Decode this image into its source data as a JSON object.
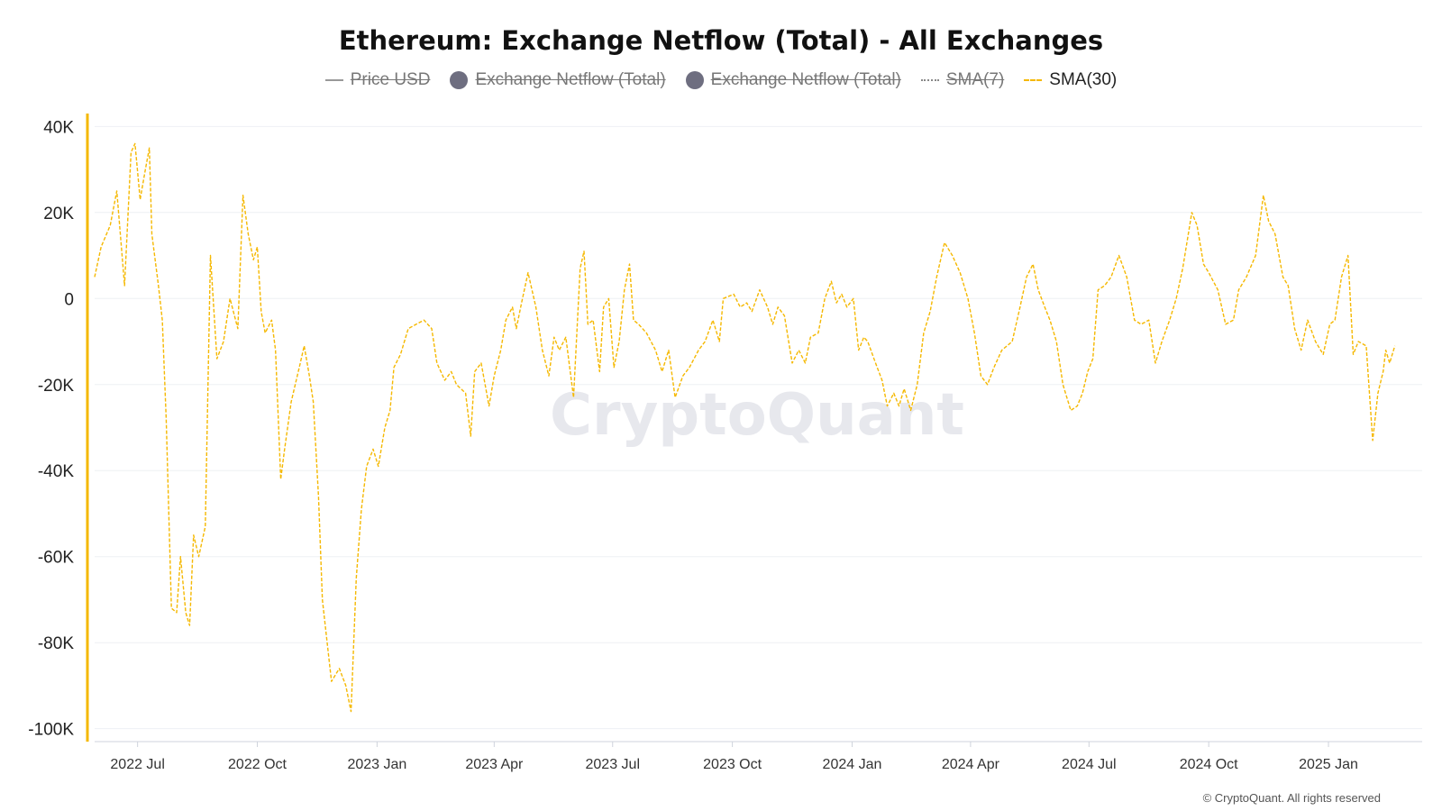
{
  "chart_data": {
    "type": "line",
    "title": "Ethereum: Exchange Netflow (Total) - All Exchanges",
    "legend": [
      {
        "label": "Price USD",
        "swatch": "line",
        "active": false,
        "color": "#999999"
      },
      {
        "label": "Exchange Netflow (Total)",
        "swatch": "dot",
        "active": false,
        "color": "#6e6e80"
      },
      {
        "label": "Exchange Netflow (Total)",
        "swatch": "dot",
        "active": false,
        "color": "#6e6e80"
      },
      {
        "label": "SMA(7)",
        "swatch": "dotted",
        "active": false,
        "color": "#888888"
      },
      {
        "label": "SMA(30)",
        "swatch": "dashed",
        "active": true,
        "color": "#f5b800"
      }
    ],
    "legend_position": "top-center",
    "y_ticks": [
      {
        "value": 40000,
        "label": "40K"
      },
      {
        "value": 20000,
        "label": "20K"
      },
      {
        "value": 0,
        "label": "0"
      },
      {
        "value": -20000,
        "label": "-20K"
      },
      {
        "value": -40000,
        "label": "-40K"
      },
      {
        "value": -60000,
        "label": "-60K"
      },
      {
        "value": -80000,
        "label": "-80K"
      },
      {
        "value": -100000,
        "label": "-100K"
      }
    ],
    "x_ticks": [
      {
        "date": "2022-07-01",
        "label": "2022 Jul"
      },
      {
        "date": "2022-10-01",
        "label": "2022 Oct"
      },
      {
        "date": "2023-01-01",
        "label": "2023 Jan"
      },
      {
        "date": "2023-04-01",
        "label": "2023 Apr"
      },
      {
        "date": "2023-07-01",
        "label": "2023 Jul"
      },
      {
        "date": "2023-10-01",
        "label": "2023 Oct"
      },
      {
        "date": "2024-01-01",
        "label": "2024 Jan"
      },
      {
        "date": "2024-04-01",
        "label": "2024 Apr"
      },
      {
        "date": "2024-07-01",
        "label": "2024 Jul"
      },
      {
        "date": "2024-10-01",
        "label": "2024 Oct"
      },
      {
        "date": "2025-01-01",
        "label": "2025 Jan"
      }
    ],
    "xlim": [
      "2022-05-29",
      "2025-03-14"
    ],
    "ylim": [
      -103000,
      43000
    ],
    "grid": true,
    "series": [
      {
        "name": "SMA(30)",
        "color": "#f5b800",
        "style": "dashed",
        "points": [
          [
            "2022-05-29",
            5000
          ],
          [
            "2022-06-03",
            12000
          ],
          [
            "2022-06-10",
            17000
          ],
          [
            "2022-06-15",
            25000
          ],
          [
            "2022-06-21",
            3000
          ],
          [
            "2022-06-26",
            34000
          ],
          [
            "2022-06-29",
            36000
          ],
          [
            "2022-07-03",
            23000
          ],
          [
            "2022-07-07",
            30000
          ],
          [
            "2022-07-10",
            35000
          ],
          [
            "2022-07-12",
            15000
          ],
          [
            "2022-07-17",
            3000
          ],
          [
            "2022-07-20",
            -5000
          ],
          [
            "2022-07-23",
            -28000
          ],
          [
            "2022-07-27",
            -72000
          ],
          [
            "2022-07-31",
            -73000
          ],
          [
            "2022-08-03",
            -60000
          ],
          [
            "2022-08-07",
            -73000
          ],
          [
            "2022-08-10",
            -76000
          ],
          [
            "2022-08-13",
            -55000
          ],
          [
            "2022-08-17",
            -60000
          ],
          [
            "2022-08-22",
            -53000
          ],
          [
            "2022-08-26",
            10000
          ],
          [
            "2022-08-31",
            -14000
          ],
          [
            "2022-09-05",
            -10000
          ],
          [
            "2022-09-10",
            0
          ],
          [
            "2022-09-16",
            -7000
          ],
          [
            "2022-09-20",
            24000
          ],
          [
            "2022-09-24",
            15000
          ],
          [
            "2022-09-28",
            9000
          ],
          [
            "2022-10-01",
            12000
          ],
          [
            "2022-10-04",
            -3000
          ],
          [
            "2022-10-07",
            -8000
          ],
          [
            "2022-10-12",
            -5000
          ],
          [
            "2022-10-15",
            -12000
          ],
          [
            "2022-10-19",
            -42000
          ],
          [
            "2022-10-22",
            -35000
          ],
          [
            "2022-10-27",
            -24000
          ],
          [
            "2022-11-03",
            -15000
          ],
          [
            "2022-11-06",
            -11000
          ],
          [
            "2022-11-10",
            -18000
          ],
          [
            "2022-11-13",
            -24000
          ],
          [
            "2022-11-17",
            -46000
          ],
          [
            "2022-11-20",
            -70000
          ],
          [
            "2022-11-27",
            -89000
          ],
          [
            "2022-12-03",
            -86000
          ],
          [
            "2022-12-08",
            -90000
          ],
          [
            "2022-12-12",
            -96000
          ],
          [
            "2022-12-16",
            -65000
          ],
          [
            "2022-12-20",
            -49000
          ],
          [
            "2022-12-24",
            -39000
          ],
          [
            "2022-12-29",
            -35000
          ],
          [
            "2023-01-02",
            -39000
          ],
          [
            "2023-01-07",
            -30000
          ],
          [
            "2023-01-11",
            -26000
          ],
          [
            "2023-01-14",
            -16000
          ],
          [
            "2023-01-19",
            -13000
          ],
          [
            "2023-01-25",
            -7000
          ],
          [
            "2023-01-31",
            -6000
          ],
          [
            "2023-02-06",
            -5000
          ],
          [
            "2023-02-12",
            -7000
          ],
          [
            "2023-02-16",
            -15000
          ],
          [
            "2023-02-22",
            -19000
          ],
          [
            "2023-02-27",
            -17000
          ],
          [
            "2023-03-03",
            -20000
          ],
          [
            "2023-03-10",
            -22000
          ],
          [
            "2023-03-14",
            -32000
          ],
          [
            "2023-03-17",
            -17000
          ],
          [
            "2023-03-22",
            -15000
          ],
          [
            "2023-03-28",
            -25000
          ],
          [
            "2023-04-01",
            -18000
          ],
          [
            "2023-04-06",
            -12000
          ],
          [
            "2023-04-10",
            -5000
          ],
          [
            "2023-04-15",
            -2000
          ],
          [
            "2023-04-18",
            -7000
          ],
          [
            "2023-04-22",
            -1000
          ],
          [
            "2023-04-27",
            6000
          ],
          [
            "2023-05-03",
            -2000
          ],
          [
            "2023-05-08",
            -12000
          ],
          [
            "2023-05-13",
            -18000
          ],
          [
            "2023-05-17",
            -9000
          ],
          [
            "2023-05-21",
            -12000
          ],
          [
            "2023-05-26",
            -9000
          ],
          [
            "2023-06-01",
            -23000
          ],
          [
            "2023-06-06",
            7000
          ],
          [
            "2023-06-09",
            11000
          ],
          [
            "2023-06-12",
            -6000
          ],
          [
            "2023-06-16",
            -5000
          ],
          [
            "2023-06-21",
            -17000
          ],
          [
            "2023-06-24",
            -2000
          ],
          [
            "2023-06-28",
            0
          ],
          [
            "2023-07-02",
            -16000
          ],
          [
            "2023-07-06",
            -10000
          ],
          [
            "2023-07-10",
            2000
          ],
          [
            "2023-07-14",
            8000
          ],
          [
            "2023-07-17",
            -5000
          ],
          [
            "2023-07-21",
            -6000
          ],
          [
            "2023-07-27",
            -8000
          ],
          [
            "2023-08-03",
            -12000
          ],
          [
            "2023-08-08",
            -17000
          ],
          [
            "2023-08-13",
            -12000
          ],
          [
            "2023-08-18",
            -23000
          ],
          [
            "2023-08-24",
            -18000
          ],
          [
            "2023-08-29",
            -16000
          ],
          [
            "2023-09-05",
            -12000
          ],
          [
            "2023-09-10",
            -10000
          ],
          [
            "2023-09-16",
            -5000
          ],
          [
            "2023-09-21",
            -10000
          ],
          [
            "2023-09-24",
            0
          ],
          [
            "2023-10-02",
            1000
          ],
          [
            "2023-10-07",
            -2000
          ],
          [
            "2023-10-12",
            -1000
          ],
          [
            "2023-10-16",
            -3000
          ],
          [
            "2023-10-22",
            2000
          ],
          [
            "2023-10-28",
            -2000
          ],
          [
            "2023-11-01",
            -6000
          ],
          [
            "2023-11-05",
            -2000
          ],
          [
            "2023-11-10",
            -4000
          ],
          [
            "2023-11-16",
            -15000
          ],
          [
            "2023-11-21",
            -12000
          ],
          [
            "2023-11-26",
            -15000
          ],
          [
            "2023-11-30",
            -9000
          ],
          [
            "2023-12-06",
            -8000
          ],
          [
            "2023-12-11",
            0
          ],
          [
            "2023-12-16",
            4000
          ],
          [
            "2023-12-20",
            -1000
          ],
          [
            "2023-12-24",
            1000
          ],
          [
            "2023-12-28",
            -2000
          ],
          [
            "2024-01-02",
            0
          ],
          [
            "2024-01-06",
            -12000
          ],
          [
            "2024-01-10",
            -9000
          ],
          [
            "2024-01-13",
            -10000
          ],
          [
            "2024-01-19",
            -15000
          ],
          [
            "2024-01-24",
            -19000
          ],
          [
            "2024-01-28",
            -25000
          ],
          [
            "2024-02-02",
            -22000
          ],
          [
            "2024-02-06",
            -25000
          ],
          [
            "2024-02-10",
            -21000
          ],
          [
            "2024-02-15",
            -26000
          ],
          [
            "2024-02-20",
            -20000
          ],
          [
            "2024-02-25",
            -8000
          ],
          [
            "2024-03-01",
            -3000
          ],
          [
            "2024-03-06",
            5000
          ],
          [
            "2024-03-12",
            13000
          ],
          [
            "2024-03-18",
            10000
          ],
          [
            "2024-03-24",
            6000
          ],
          [
            "2024-03-30",
            0
          ],
          [
            "2024-04-04",
            -8000
          ],
          [
            "2024-04-09",
            -18000
          ],
          [
            "2024-04-14",
            -20000
          ],
          [
            "2024-04-19",
            -16000
          ],
          [
            "2024-04-25",
            -12000
          ],
          [
            "2024-05-03",
            -10000
          ],
          [
            "2024-05-09",
            -2000
          ],
          [
            "2024-05-14",
            5000
          ],
          [
            "2024-05-19",
            8000
          ],
          [
            "2024-05-23",
            2000
          ],
          [
            "2024-05-28",
            -2000
          ],
          [
            "2024-06-01",
            -5000
          ],
          [
            "2024-06-06",
            -10000
          ],
          [
            "2024-06-11",
            -20000
          ],
          [
            "2024-06-17",
            -26000
          ],
          [
            "2024-06-22",
            -25000
          ],
          [
            "2024-06-26",
            -22000
          ],
          [
            "2024-06-30",
            -17000
          ],
          [
            "2024-07-04",
            -14000
          ],
          [
            "2024-07-08",
            2000
          ],
          [
            "2024-07-13",
            3000
          ],
          [
            "2024-07-18",
            5000
          ],
          [
            "2024-07-24",
            10000
          ],
          [
            "2024-07-30",
            5000
          ],
          [
            "2024-08-05",
            -5000
          ],
          [
            "2024-08-10",
            -6000
          ],
          [
            "2024-08-16",
            -5000
          ],
          [
            "2024-08-21",
            -15000
          ],
          [
            "2024-08-26",
            -10000
          ],
          [
            "2024-09-01",
            -5000
          ],
          [
            "2024-09-06",
            0
          ],
          [
            "2024-09-11",
            7000
          ],
          [
            "2024-09-18",
            20000
          ],
          [
            "2024-09-22",
            17000
          ],
          [
            "2024-09-27",
            8000
          ],
          [
            "2024-10-01",
            6000
          ],
          [
            "2024-10-08",
            2000
          ],
          [
            "2024-10-14",
            -6000
          ],
          [
            "2024-10-20",
            -5000
          ],
          [
            "2024-10-24",
            2000
          ],
          [
            "2024-10-30",
            5000
          ],
          [
            "2024-11-06",
            10000
          ],
          [
            "2024-11-12",
            24000
          ],
          [
            "2024-11-16",
            18000
          ],
          [
            "2024-11-21",
            15000
          ],
          [
            "2024-11-27",
            5000
          ],
          [
            "2024-12-01",
            3000
          ],
          [
            "2024-12-06",
            -7000
          ],
          [
            "2024-12-11",
            -12000
          ],
          [
            "2024-12-16",
            -5000
          ],
          [
            "2024-12-22",
            -10000
          ],
          [
            "2024-12-28",
            -13000
          ],
          [
            "2025-01-02",
            -6000
          ],
          [
            "2025-01-06",
            -5000
          ],
          [
            "2025-01-11",
            5000
          ],
          [
            "2025-01-16",
            10000
          ],
          [
            "2025-01-20",
            -13000
          ],
          [
            "2025-01-24",
            -10000
          ],
          [
            "2025-01-30",
            -11000
          ],
          [
            "2025-02-04",
            -33000
          ],
          [
            "2025-02-08",
            -22000
          ],
          [
            "2025-02-12",
            -17000
          ],
          [
            "2025-02-14",
            -12000
          ],
          [
            "2025-02-17",
            -15000
          ],
          [
            "2025-02-21",
            -11000
          ]
        ]
      }
    ]
  },
  "watermark": "CryptoQuant",
  "copyright": "© CryptoQuant. All rights reserved"
}
